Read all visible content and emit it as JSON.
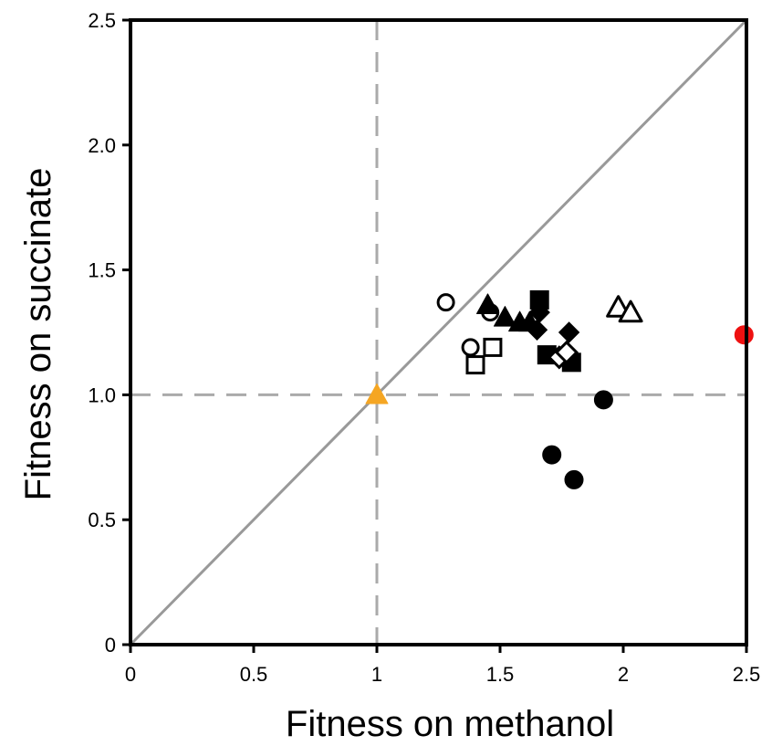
{
  "chart_data": {
    "type": "scatter",
    "title": "",
    "xlabel": "Fitness on methanol",
    "ylabel": "Fitness on succinate",
    "xlim": [
      0,
      2.5
    ],
    "ylim": [
      0,
      2.5
    ],
    "xticks": [
      0,
      0.5,
      1,
      1.5,
      2,
      2.5
    ],
    "xtick_labels": [
      "0",
      "0.5",
      "1",
      "1.5",
      "2",
      "2.5"
    ],
    "yticks": [
      0,
      0.5,
      1.0,
      1.5,
      2.0,
      2.5
    ],
    "ytick_labels": [
      "0",
      "0.5",
      "1.0",
      "1.5",
      "2.0",
      "2.5"
    ],
    "grid": false,
    "legend": "none",
    "reference_lines": [
      {
        "kind": "identity",
        "style": "solid",
        "color": "#999999"
      },
      {
        "kind": "vertical",
        "x": 1,
        "style": "dashed",
        "color": "#aaaaaa"
      },
      {
        "kind": "horizontal",
        "y": 1,
        "style": "dashed",
        "color": "#aaaaaa"
      }
    ],
    "series": [
      {
        "marker": "circle-open",
        "color": "#000000",
        "points": [
          [
            1.28,
            1.37
          ],
          [
            1.46,
            1.33
          ],
          [
            1.38,
            1.19
          ]
        ]
      },
      {
        "marker": "triangle-filled",
        "color": "#000000",
        "points": [
          [
            1.45,
            1.36
          ],
          [
            1.52,
            1.31
          ],
          [
            1.58,
            1.29
          ],
          [
            1.62,
            1.29
          ]
        ]
      },
      {
        "marker": "square-filled",
        "color": "#000000",
        "points": [
          [
            1.66,
            1.38
          ],
          [
            1.69,
            1.16
          ],
          [
            1.79,
            1.13
          ]
        ]
      },
      {
        "marker": "diamond-filled",
        "color": "#000000",
        "points": [
          [
            1.66,
            1.33
          ],
          [
            1.65,
            1.26
          ],
          [
            1.78,
            1.25
          ]
        ]
      },
      {
        "marker": "square-open",
        "color": "#000000",
        "points": [
          [
            1.4,
            1.12
          ],
          [
            1.47,
            1.19
          ]
        ]
      },
      {
        "marker": "diamond-open",
        "color": "#000000",
        "points": [
          [
            1.74,
            1.15
          ],
          [
            1.77,
            1.17
          ]
        ]
      },
      {
        "marker": "circle-filled",
        "color": "#000000",
        "points": [
          [
            1.92,
            0.98
          ],
          [
            1.71,
            0.76
          ],
          [
            1.8,
            0.66
          ]
        ]
      },
      {
        "marker": "triangle-open",
        "color": "#000000",
        "points": [
          [
            1.98,
            1.35
          ],
          [
            2.03,
            1.33
          ]
        ]
      },
      {
        "marker": "triangle-filled",
        "color": "#f5a623",
        "points": [
          [
            1.0,
            1.0
          ]
        ]
      },
      {
        "marker": "circle-filled",
        "color": "#ee1111",
        "points": [
          [
            2.49,
            1.24
          ]
        ]
      }
    ]
  }
}
